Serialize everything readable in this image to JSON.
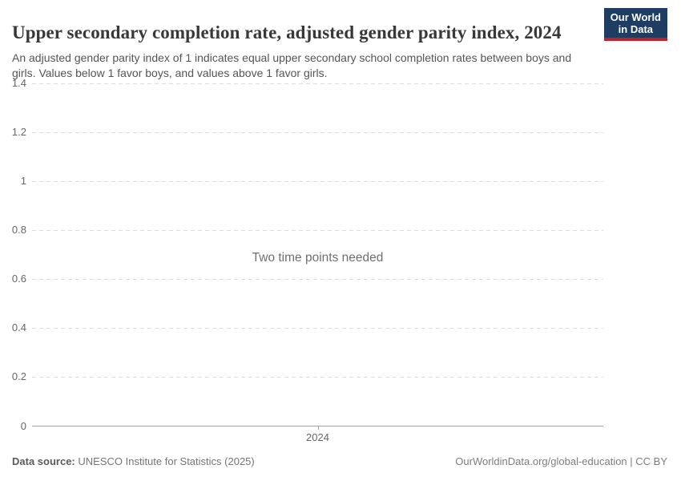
{
  "header": {
    "title": "Upper secondary completion rate, adjusted gender parity index, 2024",
    "subtitle": "An adjusted gender parity index of 1 indicates equal upper secondary school completion rates between boys and girls. Values below 1 favor boys, and values above 1 favor girls.",
    "logo": {
      "line1": "Our World",
      "line2": "in Data",
      "bg_color": "#1d3d63",
      "accent_color": "#be232d"
    }
  },
  "chart_data": {
    "type": "line",
    "title": "Upper secondary completion rate, adjusted gender parity index, 2024",
    "series": [],
    "empty_state_message": "Two time points needed",
    "ylim": [
      0,
      1.4
    ],
    "yticks": [
      0,
      0.2,
      0.4,
      0.6,
      0.8,
      1,
      1.2,
      1.4
    ],
    "ytick_labels": [
      "0",
      "0.2",
      "0.4",
      "0.6",
      "0.8",
      "1",
      "1.2",
      "1.4"
    ],
    "xtick_labels": [
      "2024"
    ],
    "xlabel": "",
    "ylabel": "",
    "grid": "horizontal-dashed",
    "legend": "none",
    "colors": {
      "gridline": "#dedede",
      "axis_line": "#a1a1a1",
      "tick_text": "#666666",
      "message_text": "#6e6e6e"
    }
  },
  "footer": {
    "source_label": "Data source:",
    "source_value": "UNESCO Institute for Statistics (2025)",
    "link_text": "OurWorldinData.org/global-education | CC BY"
  }
}
